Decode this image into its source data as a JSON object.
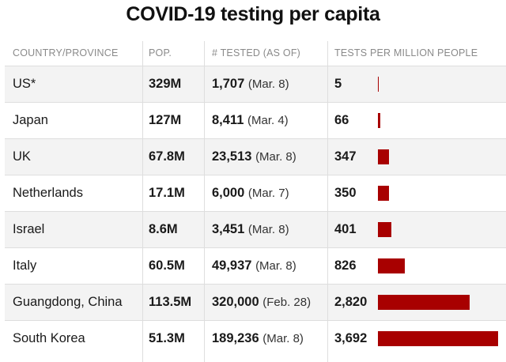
{
  "title": "COVID-19 testing per capita",
  "headers": {
    "country": "COUNTRY/PROVINCE",
    "pop": "POP.",
    "tested": "# TESTED (AS OF)",
    "per_million": "TESTS PER MILLION PEOPLE"
  },
  "rows": [
    {
      "country": "US*",
      "pop": "329M",
      "tested": "1,707",
      "date": "(Mar. 8)",
      "per_million": "5"
    },
    {
      "country": "Japan",
      "pop": "127M",
      "tested": "8,411",
      "date": "(Mar. 4)",
      "per_million": "66"
    },
    {
      "country": "UK",
      "pop": "67.8M",
      "tested": "23,513",
      "date": "(Mar. 8)",
      "per_million": "347"
    },
    {
      "country": "Netherlands",
      "pop": "17.1M",
      "tested": "6,000",
      "date": "(Mar. 7)",
      "per_million": "350"
    },
    {
      "country": "Israel",
      "pop": "8.6M",
      "tested": "3,451",
      "date": "(Mar. 8)",
      "per_million": "401"
    },
    {
      "country": "Italy",
      "pop": "60.5M",
      "tested": "49,937",
      "date": "(Mar. 8)",
      "per_million": "826"
    },
    {
      "country": "Guangdong, China",
      "pop": "113.5M",
      "tested": "320,000",
      "date": "(Feb. 28)",
      "per_million": "2,820"
    },
    {
      "country": "South Korea",
      "pop": "51.3M",
      "tested": "189,236",
      "date": "(Mar. 8)",
      "per_million": "3,692"
    }
  ],
  "chart_data": {
    "type": "bar",
    "title": "COVID-19 testing per capita",
    "categories": [
      "US*",
      "Japan",
      "UK",
      "Netherlands",
      "Israel",
      "Italy",
      "Guangdong, China",
      "South Korea"
    ],
    "values": [
      5,
      66,
      347,
      350,
      401,
      826,
      2820,
      3692
    ],
    "xlabel": "",
    "ylabel": "TESTS PER MILLION PEOPLE",
    "ylim": [
      0,
      3692
    ],
    "grid": false,
    "legend": "none",
    "bar_color": "#a80000"
  }
}
